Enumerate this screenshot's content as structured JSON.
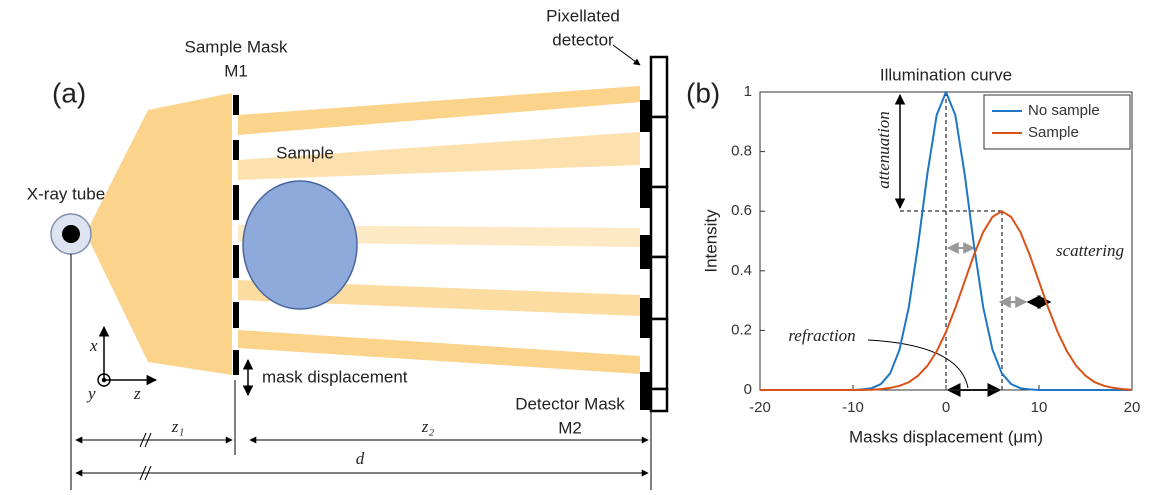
{
  "diagram": {
    "panels": [
      "(a)",
      "(b)"
    ],
    "labels": {
      "mask1_title": "Sample Mask",
      "mask1": "M1",
      "tube": "X-ray tube",
      "sample": "Sample",
      "detector_line1": "Pixellated",
      "detector_line2": "detector",
      "displacement": "mask displacement",
      "mask2_title": "Detector Mask",
      "mask2": "M2",
      "axis_x": "x",
      "axis_y": "y",
      "axis_z": "z",
      "z1": "z₁",
      "z2": "z₂",
      "d": "d"
    }
  },
  "chart_data": {
    "type": "line",
    "title": "Illumination curve",
    "x_label": "Masks displacement (μm)",
    "y_label": "Intensity",
    "annotations": [
      "attenuation",
      "scattering",
      "refraction"
    ],
    "x": [
      -20,
      -19,
      -18,
      -17,
      -16,
      -15,
      -14,
      -13,
      -12,
      -11,
      -10,
      -9,
      -8,
      -7,
      -6,
      -5,
      -4,
      -3,
      -2,
      -1,
      0,
      1,
      2,
      3,
      4,
      5,
      6,
      7,
      8,
      9,
      10,
      11,
      12,
      13,
      14,
      15,
      16,
      17,
      18,
      19,
      20
    ],
    "series": [
      {
        "name": "No sample",
        "color": "#1f77c4",
        "values": [
          0,
          0,
          0,
          0,
          0,
          0,
          0,
          0,
          0,
          0,
          0,
          0.002,
          0.006,
          0.02,
          0.056,
          0.135,
          0.278,
          0.487,
          0.726,
          0.923,
          1,
          0.923,
          0.726,
          0.487,
          0.278,
          0.135,
          0.056,
          0.02,
          0.006,
          0.002,
          0,
          0,
          0,
          0,
          0,
          0,
          0,
          0,
          0,
          0,
          0
        ]
      },
      {
        "name": "Sample",
        "color": "#d95319",
        "values": [
          0,
          0,
          0,
          0,
          0,
          0,
          0,
          0,
          0,
          0,
          0,
          0,
          0.001,
          0.003,
          0.007,
          0.014,
          0.026,
          0.048,
          0.081,
          0.13,
          0.195,
          0.275,
          0.364,
          0.453,
          0.53,
          0.581,
          0.6,
          0.581,
          0.53,
          0.453,
          0.364,
          0.275,
          0.195,
          0.13,
          0.081,
          0.048,
          0.026,
          0.014,
          0.007,
          0.003,
          0.001
        ]
      }
    ],
    "xlim": [
      -20,
      20
    ],
    "xticks": [
      -20,
      -10,
      0,
      10,
      20
    ],
    "ylim": [
      0,
      1
    ],
    "yticks": [
      0,
      0.2,
      0.4,
      0.6,
      0.8,
      1
    ],
    "grid": false,
    "legend": "upper right"
  }
}
